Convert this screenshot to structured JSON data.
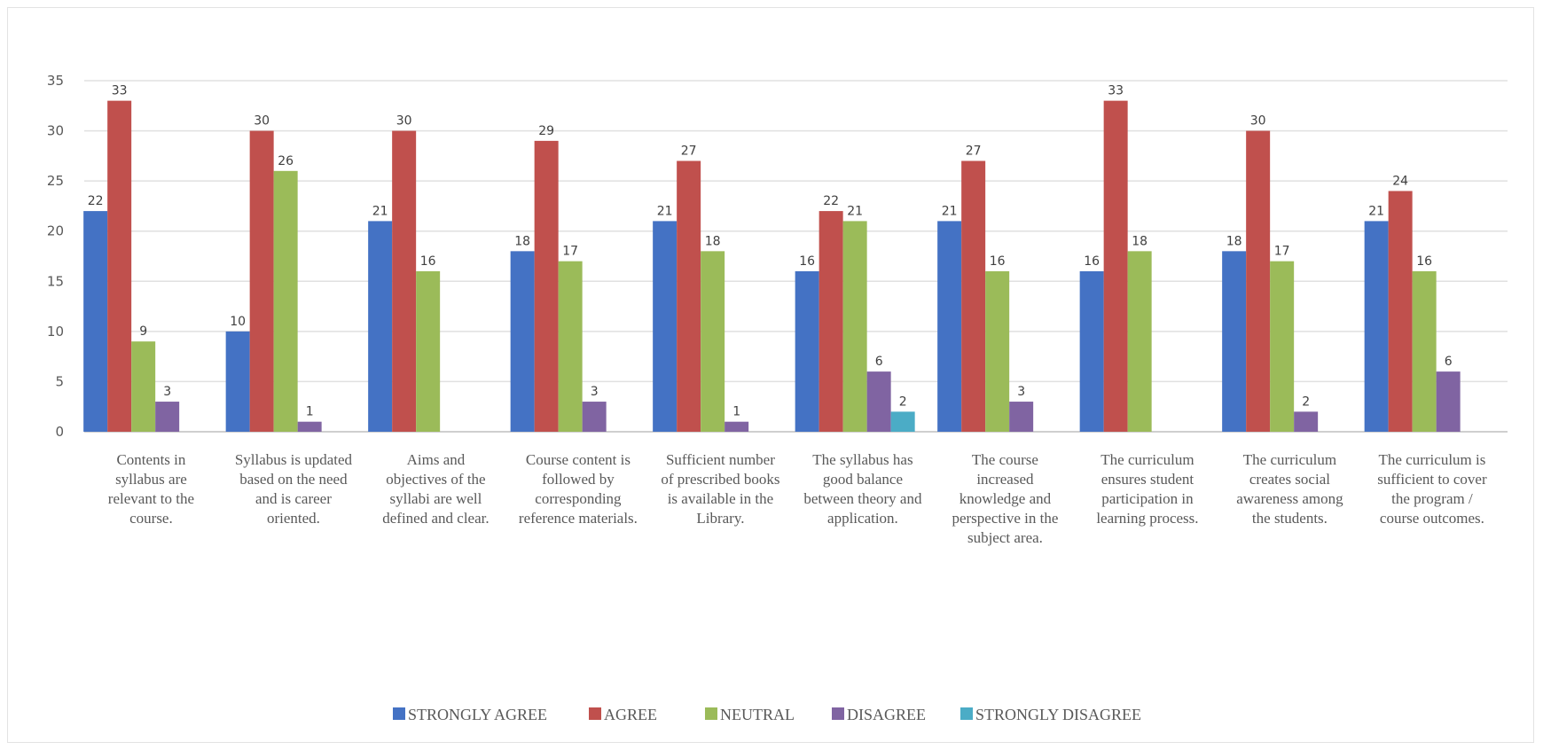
{
  "chart_data": {
    "type": "bar",
    "title": "",
    "xlabel": "",
    "ylabel": "",
    "ylim": [
      0,
      35
    ],
    "yticks": [
      0,
      5,
      10,
      15,
      20,
      25,
      30,
      35
    ],
    "grid": true,
    "legend_position": "bottom",
    "categories": [
      "Contents in syllabus are relevant to the course.",
      "Syllabus is updated based on the need and is career oriented.",
      "Aims and objectives of the syllabi are well defined and clear.",
      "Course content is followed by corresponding reference materials.",
      "Sufficient number of prescribed books is available in the Library.",
      "The syllabus has good balance between theory and application.",
      "The course increased knowledge and perspective in the subject area.",
      "The curriculum ensures student participation in learning process.",
      "The curriculum creates social awareness among the students.",
      "The curriculum is sufficient to cover the program / course outcomes."
    ],
    "category_lines": [
      [
        "Contents in",
        "syllabus are",
        "relevant to the",
        "course."
      ],
      [
        "Syllabus is updated",
        "based on the need",
        "and is career",
        "oriented."
      ],
      [
        "Aims and",
        "objectives of the",
        "syllabi are well",
        "defined and clear."
      ],
      [
        "Course content is",
        "followed by",
        "corresponding",
        "reference materials."
      ],
      [
        "Sufficient number",
        "of prescribed books",
        "is available in the",
        "Library."
      ],
      [
        "The syllabus has",
        "good balance",
        "between theory and",
        "application."
      ],
      [
        "The course",
        "increased",
        "knowledge and",
        "perspective in the",
        "subject area."
      ],
      [
        "The curriculum",
        "ensures student",
        "participation in",
        "learning process."
      ],
      [
        "The curriculum",
        "creates social",
        "awareness among",
        "the students."
      ],
      [
        "The curriculum is",
        "sufficient to cover",
        "the program /",
        "course outcomes."
      ]
    ],
    "series": [
      {
        "name": "STRONGLY AGREE",
        "color": "#4472c4",
        "values": [
          22,
          10,
          21,
          18,
          21,
          16,
          21,
          16,
          18,
          21
        ]
      },
      {
        "name": "AGREE",
        "color": "#c0504d",
        "values": [
          33,
          30,
          30,
          29,
          27,
          22,
          27,
          33,
          30,
          24
        ]
      },
      {
        "name": "NEUTRAL",
        "color": "#9bbb59",
        "values": [
          9,
          26,
          16,
          17,
          18,
          21,
          16,
          18,
          17,
          16
        ]
      },
      {
        "name": "DISAGREE",
        "color": "#8064a2",
        "values": [
          3,
          1,
          null,
          3,
          1,
          6,
          3,
          null,
          2,
          6
        ]
      },
      {
        "name": "STRONGLY DISAGREE",
        "color": "#4bacc6",
        "values": [
          null,
          null,
          null,
          null,
          null,
          2,
          null,
          null,
          null,
          null
        ]
      }
    ]
  }
}
